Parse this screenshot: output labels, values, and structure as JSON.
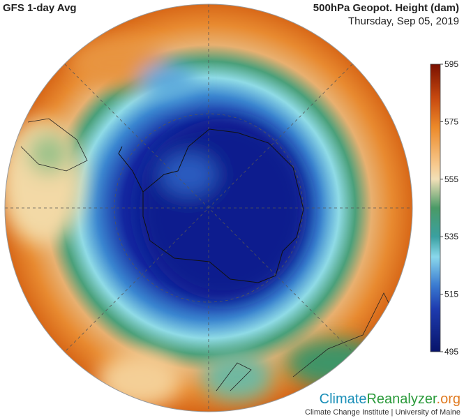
{
  "header": {
    "title": "GFS 1-day Avg",
    "variable": "500hPa Geopot. Height (dam)",
    "date": "Thursday, Sep 05, 2019"
  },
  "colorbar": {
    "lim": [
      495,
      595
    ],
    "ticks": [
      595,
      575,
      555,
      535,
      515,
      495
    ]
  },
  "branding": {
    "climate": "Climate",
    "reanalyzer": "Reanalyzer",
    "org": ".org",
    "institute": "Climate Change Institute | University of Maine"
  }
}
